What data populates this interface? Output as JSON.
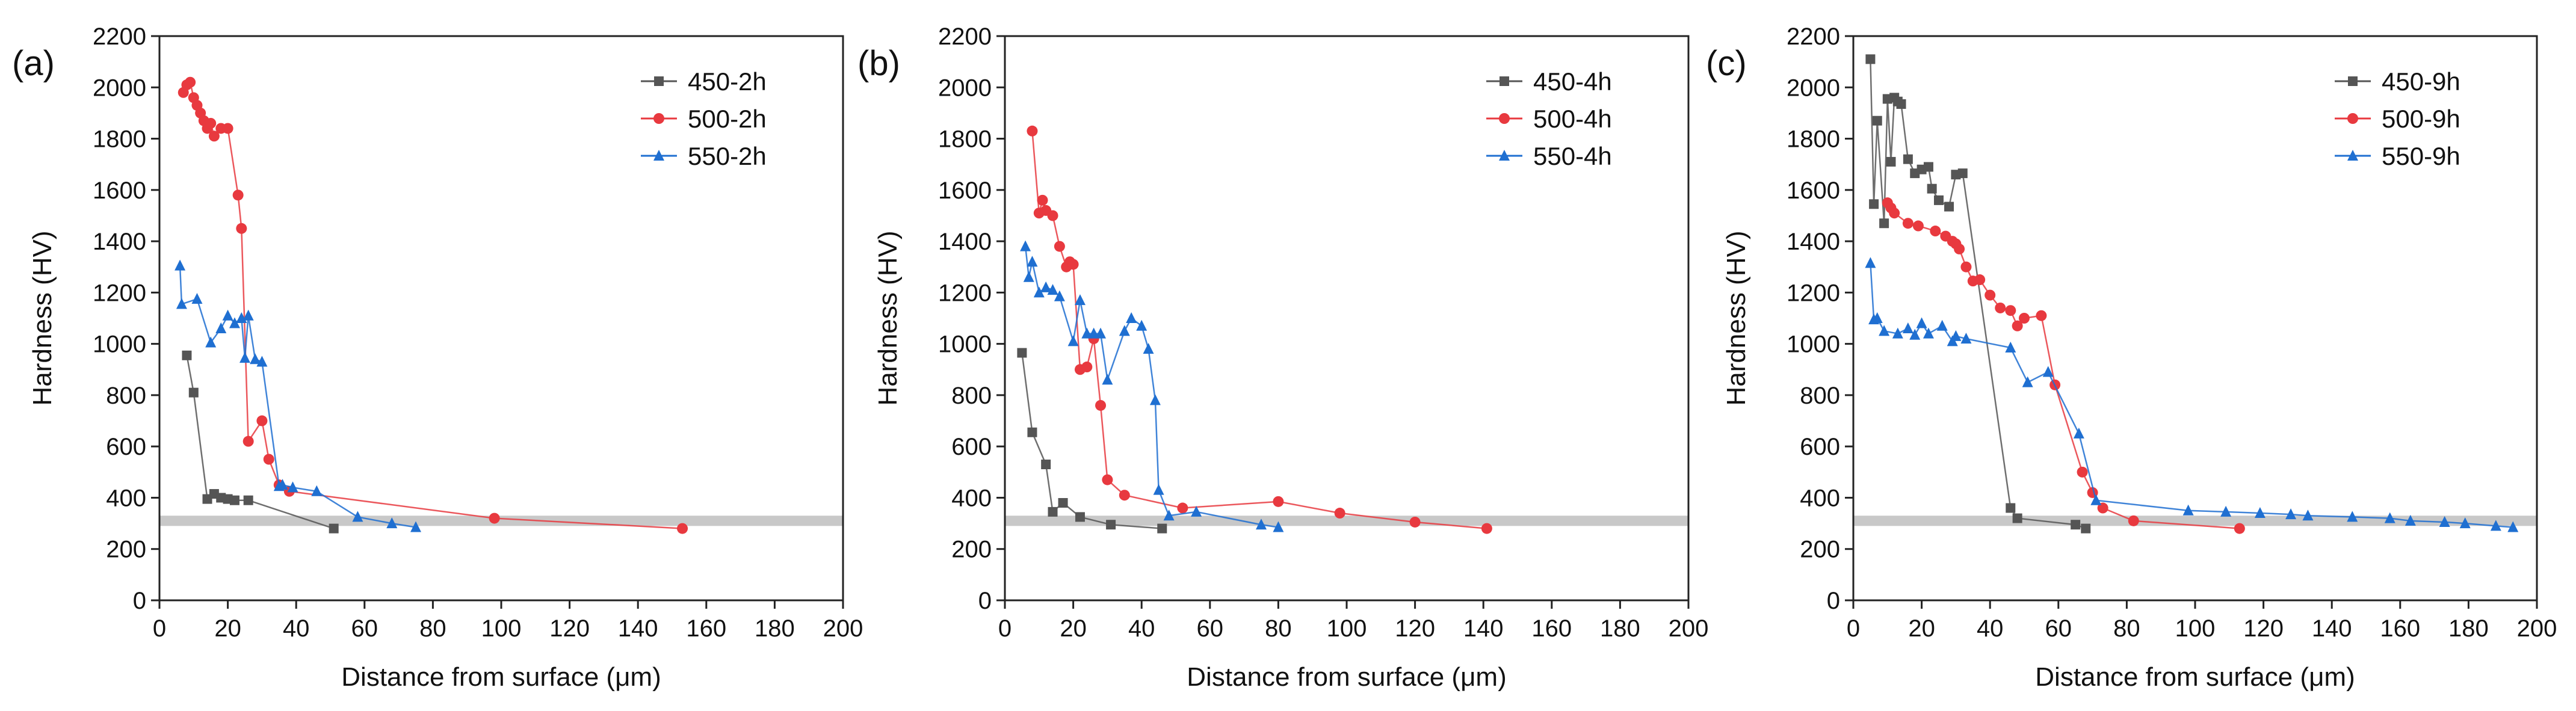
{
  "figure": {
    "background": "#ffffff",
    "band_color": "#c8c8c8"
  },
  "chart_data": [
    {
      "type": "line",
      "panel_label": "(a)",
      "xlabel": "Distance from surface (μm)",
      "ylabel": "Hardness (HV)",
      "xlim": [
        0,
        200
      ],
      "ylim": [
        0,
        2200
      ],
      "xticks": [
        0,
        20,
        40,
        60,
        80,
        100,
        120,
        140,
        160,
        180,
        200
      ],
      "yticks": [
        0,
        200,
        400,
        600,
        800,
        1000,
        1200,
        1400,
        1600,
        1800,
        2000,
        2200
      ],
      "grid": false,
      "legend_position": "top-right",
      "band": [
        290,
        330
      ],
      "series": [
        {
          "name": "450-2h",
          "color": "#555555",
          "marker": "square",
          "x": [
            8,
            10,
            14,
            16,
            18,
            20,
            22,
            26,
            51
          ],
          "y": [
            955,
            810,
            395,
            415,
            400,
            395,
            390,
            390,
            280
          ]
        },
        {
          "name": "500-2h",
          "color": "#e8393f",
          "marker": "circle",
          "x": [
            7,
            8,
            9,
            10,
            11,
            12,
            13,
            14,
            15,
            16,
            18,
            20,
            23,
            24,
            26,
            30,
            32,
            35,
            38,
            98,
            153
          ],
          "y": [
            1980,
            2010,
            2020,
            1960,
            1930,
            1900,
            1870,
            1840,
            1860,
            1810,
            1840,
            1840,
            1580,
            1450,
            620,
            700,
            550,
            450,
            425,
            320,
            280
          ]
        },
        {
          "name": "550-2h",
          "color": "#1f6fd1",
          "marker": "triangle",
          "x": [
            6,
            6.5,
            11,
            15,
            18,
            20,
            22,
            24,
            25,
            26,
            28,
            30,
            35,
            36,
            39,
            46,
            58,
            68,
            75
          ],
          "y": [
            1305,
            1155,
            1175,
            1005,
            1060,
            1110,
            1080,
            1100,
            945,
            1110,
            940,
            930,
            445,
            450,
            440,
            425,
            325,
            300,
            285
          ]
        }
      ]
    },
    {
      "type": "line",
      "panel_label": "(b)",
      "xlabel": "Distance from surface (μm)",
      "ylabel": "Hardness (HV)",
      "xlim": [
        0,
        200
      ],
      "ylim": [
        0,
        2200
      ],
      "xticks": [
        0,
        20,
        40,
        60,
        80,
        100,
        120,
        140,
        160,
        180,
        200
      ],
      "yticks": [
        0,
        200,
        400,
        600,
        800,
        1000,
        1200,
        1400,
        1600,
        1800,
        2000,
        2200
      ],
      "grid": false,
      "legend_position": "top-right",
      "band": [
        290,
        330
      ],
      "series": [
        {
          "name": "450-4h",
          "color": "#555555",
          "marker": "square",
          "x": [
            5,
            8,
            12,
            14,
            17,
            22,
            31,
            46
          ],
          "y": [
            965,
            655,
            530,
            345,
            380,
            325,
            295,
            280
          ]
        },
        {
          "name": "500-4h",
          "color": "#e8393f",
          "marker": "circle",
          "x": [
            8,
            10,
            11,
            12,
            14,
            16,
            18,
            19,
            20,
            22,
            24,
            26,
            28,
            30,
            35,
            52,
            80,
            98,
            120,
            141
          ],
          "y": [
            1830,
            1510,
            1560,
            1520,
            1500,
            1380,
            1300,
            1320,
            1310,
            900,
            910,
            1020,
            760,
            470,
            410,
            360,
            385,
            340,
            305,
            280
          ]
        },
        {
          "name": "550-4h",
          "color": "#1f6fd1",
          "marker": "triangle",
          "x": [
            6,
            7,
            8,
            10,
            12,
            14,
            16,
            20,
            22,
            24,
            26,
            28,
            30,
            35,
            37,
            40,
            42,
            44,
            45,
            48,
            56,
            75,
            80
          ],
          "y": [
            1380,
            1260,
            1320,
            1200,
            1220,
            1210,
            1185,
            1010,
            1170,
            1040,
            1040,
            1040,
            860,
            1050,
            1100,
            1070,
            980,
            780,
            430,
            330,
            345,
            295,
            285
          ]
        }
      ]
    },
    {
      "type": "line",
      "panel_label": "(c)",
      "xlabel": "Distance from surface (μm)",
      "ylabel": "Hardness (HV)",
      "xlim": [
        0,
        200
      ],
      "ylim": [
        0,
        2200
      ],
      "xticks": [
        0,
        20,
        40,
        60,
        80,
        100,
        120,
        140,
        160,
        180,
        200
      ],
      "yticks": [
        0,
        200,
        400,
        600,
        800,
        1000,
        1200,
        1400,
        1600,
        1800,
        2000,
        2200
      ],
      "grid": false,
      "legend_position": "top-right",
      "band": [
        290,
        330
      ],
      "series": [
        {
          "name": "450-9h",
          "color": "#555555",
          "marker": "square",
          "x": [
            5,
            6,
            7,
            9,
            10,
            11,
            12,
            13,
            14,
            16,
            18,
            20,
            22,
            23,
            25,
            28,
            30,
            32,
            46,
            48,
            65,
            68
          ],
          "y": [
            2110,
            1545,
            1870,
            1470,
            1955,
            1710,
            1960,
            1945,
            1935,
            1720,
            1665,
            1680,
            1690,
            1605,
            1560,
            1535,
            1660,
            1665,
            360,
            320,
            295,
            280
          ]
        },
        {
          "name": "500-9h",
          "color": "#e8393f",
          "marker": "circle",
          "x": [
            10,
            11,
            12,
            16,
            19,
            24,
            27,
            29,
            30,
            31,
            33,
            35,
            37,
            40,
            43,
            46,
            48,
            50,
            55,
            59,
            67,
            70,
            73,
            82,
            113
          ],
          "y": [
            1550,
            1530,
            1510,
            1470,
            1460,
            1440,
            1420,
            1400,
            1390,
            1370,
            1300,
            1245,
            1250,
            1190,
            1140,
            1130,
            1070,
            1100,
            1110,
            840,
            500,
            420,
            360,
            310,
            280
          ]
        },
        {
          "name": "550-9h",
          "color": "#1f6fd1",
          "marker": "triangle",
          "x": [
            5,
            6,
            7,
            9,
            13,
            16,
            18,
            20,
            22,
            26,
            29,
            30,
            33,
            46,
            51,
            57,
            66,
            71,
            98,
            109,
            119,
            128,
            133,
            146,
            157,
            163,
            173,
            179,
            188,
            193
          ],
          "y": [
            1315,
            1095,
            1100,
            1050,
            1040,
            1060,
            1035,
            1080,
            1040,
            1070,
            1010,
            1030,
            1020,
            985,
            850,
            890,
            650,
            390,
            350,
            345,
            340,
            335,
            330,
            325,
            320,
            310,
            305,
            300,
            290,
            285
          ]
        }
      ]
    }
  ]
}
